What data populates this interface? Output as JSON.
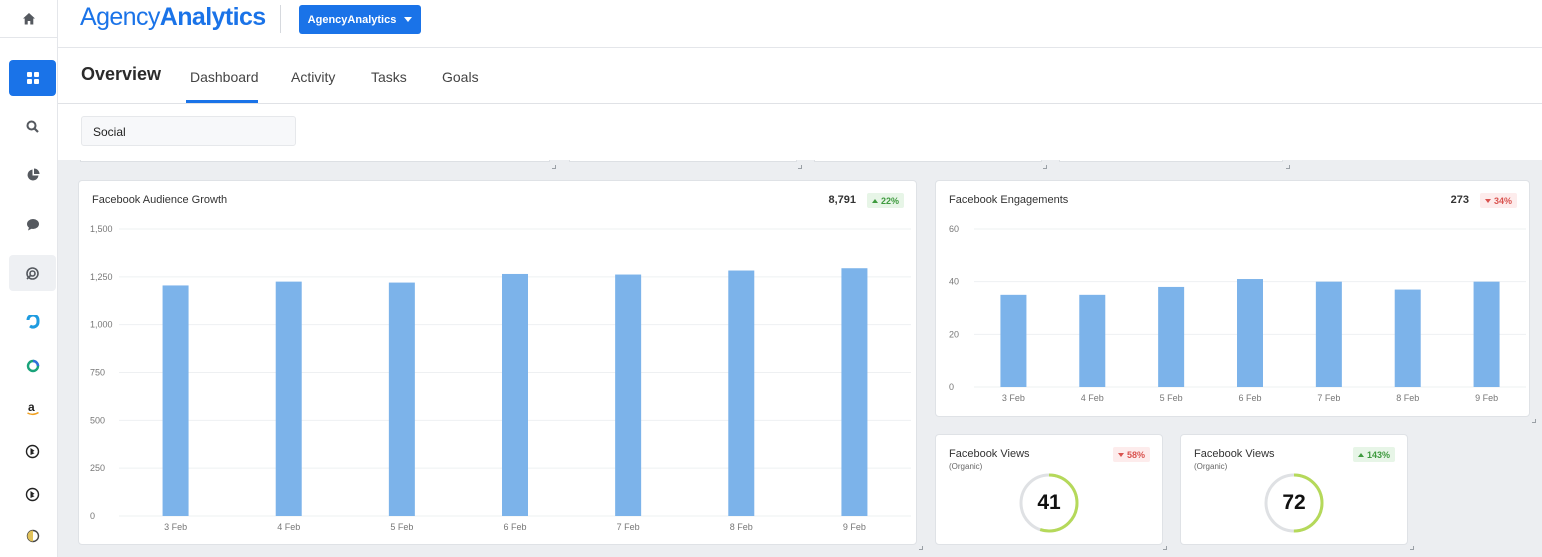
{
  "app": {
    "logo_light": "Agency",
    "logo_bold": "Analytics",
    "account_button": "AgencyAnalytics",
    "brand_color": "#1a73e8"
  },
  "sidebar": {
    "items": [
      {
        "icon": "home-icon"
      },
      {
        "icon": "grid-icon",
        "active": true
      },
      {
        "icon": "search-icon"
      },
      {
        "icon": "pie-chart-icon"
      },
      {
        "icon": "chat-bubble-icon"
      },
      {
        "icon": "spiral-icon"
      },
      {
        "icon": "hook-logo-icon"
      },
      {
        "icon": "ring-logo-icon"
      },
      {
        "icon": "amazon-logo-icon"
      },
      {
        "icon": "bing-logo-icon"
      },
      {
        "icon": "bing-logo-icon"
      },
      {
        "icon": "half-circle-icon"
      }
    ]
  },
  "header": {
    "title": "Overview",
    "tabs": [
      {
        "label": "Dashboard",
        "active": true
      },
      {
        "label": "Activity"
      },
      {
        "label": "Tasks"
      },
      {
        "label": "Goals"
      }
    ]
  },
  "filter": {
    "value": "Social"
  },
  "widgets": {
    "audience_growth": {
      "title": "Facebook Audience Growth",
      "value": "8,791",
      "change": "22%",
      "trend": "up"
    },
    "engagements": {
      "title": "Facebook Engagements",
      "value": "273",
      "change": "34%",
      "trend": "down"
    },
    "views_1": {
      "title": "Facebook Views",
      "subtitle": "(Organic)",
      "change": "58%",
      "trend": "down",
      "value": "41",
      "gauge_fraction": 0.55
    },
    "views_2": {
      "title": "Facebook Views",
      "subtitle": "(Organic)",
      "change": "143%",
      "trend": "up",
      "value": "72",
      "gauge_fraction": 0.5
    }
  },
  "chart_data": [
    {
      "type": "bar",
      "categories": [
        "3 Feb",
        "4 Feb",
        "5 Feb",
        "6 Feb",
        "7 Feb",
        "8 Feb",
        "9 Feb"
      ],
      "values": [
        1205,
        1225,
        1220,
        1265,
        1262,
        1283,
        1295
      ],
      "yticks": [
        "0",
        "250",
        "500",
        "750",
        "1,000",
        "1,250",
        "1,500"
      ],
      "ylim": [
        0,
        1500
      ],
      "grid": true,
      "bar_color": "#7cb3ea"
    },
    {
      "type": "bar",
      "categories": [
        "3 Feb",
        "4 Feb",
        "5 Feb",
        "6 Feb",
        "7 Feb",
        "8 Feb",
        "9 Feb"
      ],
      "values": [
        35,
        35,
        38,
        41,
        40,
        37,
        40
      ],
      "yticks": [
        "0",
        "20",
        "40",
        "60"
      ],
      "ylim": [
        0,
        60
      ],
      "grid": true,
      "bar_color": "#7cb3ea"
    }
  ]
}
